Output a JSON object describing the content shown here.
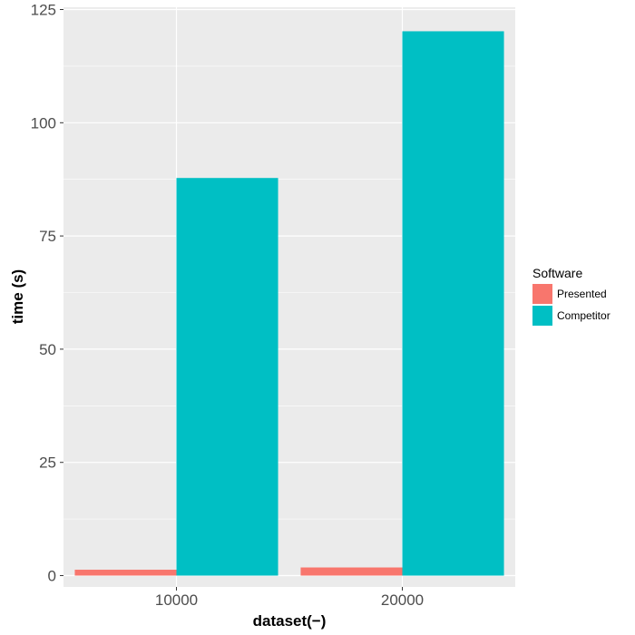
{
  "chart_data": {
    "type": "bar",
    "categories": [
      "10000",
      "20000"
    ],
    "series": [
      {
        "name": "Presented",
        "values": [
          1.3,
          1.8
        ],
        "color": "#F8766D"
      },
      {
        "name": "Competitor",
        "values": [
          87.8,
          120.2
        ],
        "color": "#00BFC4"
      }
    ],
    "xlabel": "dataset(−)",
    "ylabel": "time (s)",
    "ylim": [
      -2.5,
      125.5
    ],
    "yticks": [
      0,
      25,
      50,
      75,
      100,
      125
    ],
    "ytick_labels": [
      "0",
      "25",
      "50",
      "75",
      "100",
      "125"
    ],
    "grid": true,
    "panel_background": "#EBEBEB",
    "legend": {
      "title": "Software",
      "position": "right"
    }
  }
}
